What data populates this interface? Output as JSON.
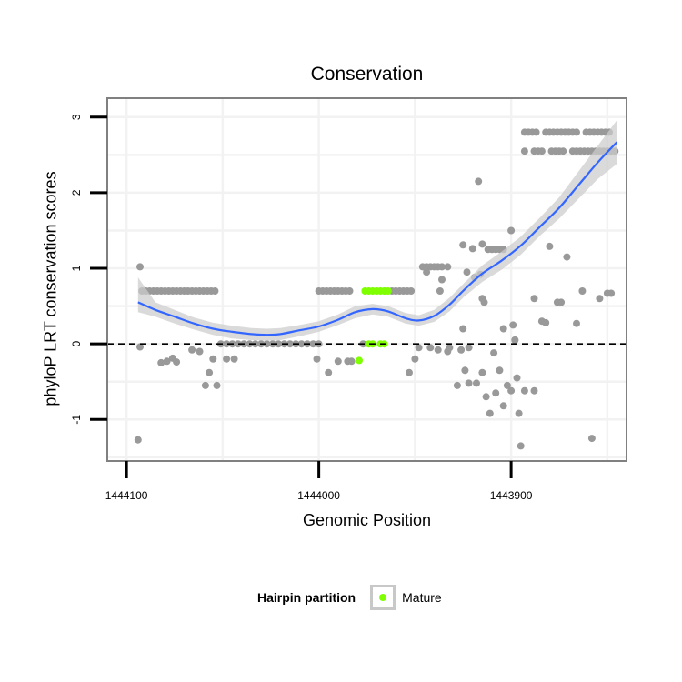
{
  "chart_data": {
    "type": "scatter",
    "title": "Conservation",
    "xlabel": "Genomic Position",
    "ylabel": "phyloP LRT conservation scores",
    "x_reversed": true,
    "xlim": [
      1444110,
      1443840
    ],
    "ylim": [
      -1.55,
      3.25
    ],
    "x_ticks": [
      1444100,
      1444000,
      1443900
    ],
    "x_tick_labels": [
      "1444100",
      "1444000",
      "1443900"
    ],
    "y_ticks": [
      3,
      2,
      1,
      0,
      -1
    ],
    "y_tick_labels": [
      "3",
      "2",
      "1",
      "0",
      "-1"
    ],
    "grid": true,
    "reference_line": {
      "y": 0,
      "style": "dashed"
    },
    "colors": {
      "background": "#ffffff",
      "panel_border": "#808080",
      "grid": "#f2f2f2",
      "points": "#999999",
      "mature": "#7fff00",
      "smooth_line": "#3366ff",
      "ribbon": "#cccccc",
      "reference": "#000000"
    },
    "legend": {
      "title": "Hairpin partition",
      "position": "bottom",
      "entries": [
        {
          "label": "Mature",
          "color": "#7fff00"
        }
      ]
    },
    "series": [
      {
        "name": "Other",
        "color": "#999999",
        "points": [
          [
            1444093,
            1.02
          ],
          [
            1444093,
            -0.04
          ],
          [
            1444094,
            -1.27
          ],
          [
            1444092,
            0.7
          ],
          [
            1444090,
            0.7
          ],
          [
            1444088,
            0.7
          ],
          [
            1444086,
            0.7
          ],
          [
            1444084,
            0.7
          ],
          [
            1444082,
            0.7
          ],
          [
            1444080,
            0.7
          ],
          [
            1444078,
            0.7
          ],
          [
            1444076,
            0.7
          ],
          [
            1444074,
            0.7
          ],
          [
            1444072,
            0.7
          ],
          [
            1444070,
            0.7
          ],
          [
            1444068,
            0.7
          ],
          [
            1444066,
            0.7
          ],
          [
            1444064,
            0.7
          ],
          [
            1444062,
            0.7
          ],
          [
            1444060,
            0.7
          ],
          [
            1444058,
            0.7
          ],
          [
            1444056,
            0.7
          ],
          [
            1444054,
            0.7
          ],
          [
            1444082,
            -0.25
          ],
          [
            1444079,
            -0.23
          ],
          [
            1444076,
            -0.19
          ],
          [
            1444074,
            -0.24
          ],
          [
            1444066,
            -0.08
          ],
          [
            1444062,
            -0.1
          ],
          [
            1444059,
            -0.55
          ],
          [
            1444057,
            -0.38
          ],
          [
            1444055,
            -0.2
          ],
          [
            1444053,
            -0.55
          ],
          [
            1444048,
            -0.2
          ],
          [
            1444044,
            -0.2
          ],
          [
            1444051,
            0.0
          ],
          [
            1444048,
            0.0
          ],
          [
            1444045,
            0.0
          ],
          [
            1444042,
            0.0
          ],
          [
            1444039,
            0.0
          ],
          [
            1444036,
            0.0
          ],
          [
            1444033,
            0.0
          ],
          [
            1444030,
            0.0
          ],
          [
            1444027,
            0.0
          ],
          [
            1444024,
            0.0
          ],
          [
            1444021,
            0.0
          ],
          [
            1444018,
            0.0
          ],
          [
            1444015,
            0.0
          ],
          [
            1444012,
            0.0
          ],
          [
            1444009,
            0.0
          ],
          [
            1444006,
            0.0
          ],
          [
            1444003,
            0.0
          ],
          [
            1444000,
            0.0
          ],
          [
            1444001,
            -0.2
          ],
          [
            1443995,
            -0.38
          ],
          [
            1443990,
            -0.23
          ],
          [
            1443985,
            -0.23
          ],
          [
            1443983,
            -0.23
          ],
          [
            1443977,
            0.0
          ],
          [
            1444000,
            0.7
          ],
          [
            1443998,
            0.7
          ],
          [
            1443996,
            0.7
          ],
          [
            1443994,
            0.7
          ],
          [
            1443992,
            0.7
          ],
          [
            1443990,
            0.7
          ],
          [
            1443988,
            0.7
          ],
          [
            1443986,
            0.7
          ],
          [
            1443984,
            0.7
          ],
          [
            1443962,
            0.7
          ],
          [
            1443960,
            0.7
          ],
          [
            1443958,
            0.7
          ],
          [
            1443956,
            0.7
          ],
          [
            1443954,
            0.7
          ],
          [
            1443952,
            0.7
          ],
          [
            1443953,
            -0.38
          ],
          [
            1443950,
            -0.2
          ],
          [
            1443948,
            -0.05
          ],
          [
            1443946,
            1.02
          ],
          [
            1443944,
            1.02
          ],
          [
            1443942,
            1.02
          ],
          [
            1443940,
            1.02
          ],
          [
            1443938,
            1.02
          ],
          [
            1443936,
            1.02
          ],
          [
            1443933,
            1.02
          ],
          [
            1443944,
            0.95
          ],
          [
            1443936,
            0.85
          ],
          [
            1443937,
            0.7
          ],
          [
            1443942,
            -0.05
          ],
          [
            1443938,
            -0.08
          ],
          [
            1443933,
            -0.1
          ],
          [
            1443932,
            -0.05
          ],
          [
            1443928,
            -0.55
          ],
          [
            1443925,
            1.31
          ],
          [
            1443923,
            0.95
          ],
          [
            1443920,
            1.26
          ],
          [
            1443919,
            0.88
          ],
          [
            1443917,
            2.15
          ],
          [
            1443915,
            1.32
          ],
          [
            1443916,
            0.92
          ],
          [
            1443915,
            0.6
          ],
          [
            1443914,
            0.55
          ],
          [
            1443912,
            1.25
          ],
          [
            1443910,
            1.25
          ],
          [
            1443908,
            1.25
          ],
          [
            1443906,
            1.25
          ],
          [
            1443904,
            1.25
          ],
          [
            1443925,
            0.2
          ],
          [
            1443926,
            -0.08
          ],
          [
            1443922,
            -0.05
          ],
          [
            1443924,
            -0.35
          ],
          [
            1443922,
            -0.52
          ],
          [
            1443918,
            -0.52
          ],
          [
            1443915,
            -0.38
          ],
          [
            1443913,
            -0.7
          ],
          [
            1443911,
            -0.92
          ],
          [
            1443909,
            -0.12
          ],
          [
            1443908,
            -0.65
          ],
          [
            1443906,
            -0.35
          ],
          [
            1443904,
            -0.82
          ],
          [
            1443902,
            -0.55
          ],
          [
            1443900,
            -0.62
          ],
          [
            1443899,
            0.25
          ],
          [
            1443898,
            0.05
          ],
          [
            1443904,
            0.2
          ],
          [
            1443900,
            1.5
          ],
          [
            1443897,
            -0.45
          ],
          [
            1443896,
            -0.92
          ],
          [
            1443895,
            -1.35
          ],
          [
            1443898,
            0.05
          ],
          [
            1443893,
            -0.62
          ],
          [
            1443888,
            0.6
          ],
          [
            1443882,
            0.28
          ],
          [
            1443880,
            1.29
          ],
          [
            1443876,
            0.55
          ],
          [
            1443874,
            0.55
          ],
          [
            1443871,
            1.15
          ],
          [
            1443866,
            0.27
          ],
          [
            1443863,
            0.7
          ],
          [
            1443858,
            -1.25
          ],
          [
            1443854,
            0.6
          ],
          [
            1443850,
            0.67
          ],
          [
            1443848,
            0.67
          ],
          [
            1443888,
            -0.62
          ],
          [
            1443884,
            0.3
          ],
          [
            1443893,
            2.8
          ],
          [
            1443891,
            2.8
          ],
          [
            1443889,
            2.8
          ],
          [
            1443887,
            2.8
          ],
          [
            1443882,
            2.8
          ],
          [
            1443880,
            2.8
          ],
          [
            1443878,
            2.8
          ],
          [
            1443876,
            2.8
          ],
          [
            1443874,
            2.8
          ],
          [
            1443872,
            2.8
          ],
          [
            1443870,
            2.8
          ],
          [
            1443868,
            2.8
          ],
          [
            1443866,
            2.8
          ],
          [
            1443861,
            2.8
          ],
          [
            1443859,
            2.8
          ],
          [
            1443857,
            2.8
          ],
          [
            1443855,
            2.8
          ],
          [
            1443853,
            2.8
          ],
          [
            1443851,
            2.8
          ],
          [
            1443849,
            2.8
          ],
          [
            1443893,
            2.55
          ],
          [
            1443888,
            2.55
          ],
          [
            1443886,
            2.55
          ],
          [
            1443884,
            2.55
          ],
          [
            1443879,
            2.55
          ],
          [
            1443877,
            2.55
          ],
          [
            1443875,
            2.55
          ],
          [
            1443873,
            2.55
          ],
          [
            1443868,
            2.55
          ],
          [
            1443866,
            2.55
          ],
          [
            1443864,
            2.55
          ],
          [
            1443862,
            2.55
          ],
          [
            1443860,
            2.55
          ],
          [
            1443858,
            2.55
          ],
          [
            1443856,
            2.55
          ],
          [
            1443854,
            2.55
          ],
          [
            1443852,
            2.55
          ],
          [
            1443850,
            2.55
          ],
          [
            1443848,
            2.55
          ],
          [
            1443846,
            2.55
          ]
        ]
      },
      {
        "name": "Mature",
        "color": "#7fff00",
        "points": [
          [
            1443976,
            0.7
          ],
          [
            1443974,
            0.7
          ],
          [
            1443972,
            0.7
          ],
          [
            1443970,
            0.7
          ],
          [
            1443968,
            0.7
          ],
          [
            1443966,
            0.7
          ],
          [
            1443964,
            0.7
          ],
          [
            1443974,
            0.0
          ],
          [
            1443972,
            0.0
          ],
          [
            1443968,
            0.0
          ],
          [
            1443966,
            0.0
          ],
          [
            1443979,
            -0.22
          ]
        ]
      }
    ],
    "smooth": {
      "method": "loess",
      "x": [
        1444094,
        1444085,
        1444075,
        1444065,
        1444055,
        1444045,
        1444035,
        1444027,
        1444020,
        1444010,
        1444000,
        1443990,
        1443981,
        1443972,
        1443964,
        1443955,
        1443948,
        1443940,
        1443932,
        1443925,
        1443915,
        1443905,
        1443895,
        1443885,
        1443875,
        1443865,
        1443855,
        1443845
      ],
      "y": [
        0.55,
        0.45,
        0.36,
        0.27,
        0.2,
        0.16,
        0.13,
        0.12,
        0.13,
        0.18,
        0.23,
        0.32,
        0.42,
        0.46,
        0.43,
        0.34,
        0.31,
        0.37,
        0.52,
        0.7,
        0.93,
        1.1,
        1.3,
        1.55,
        1.8,
        2.1,
        2.4,
        2.67
      ],
      "lower": [
        0.42,
        0.36,
        0.27,
        0.19,
        0.12,
        0.07,
        0.05,
        0.04,
        0.05,
        0.1,
        0.16,
        0.25,
        0.34,
        0.39,
        0.36,
        0.27,
        0.24,
        0.29,
        0.43,
        0.61,
        0.82,
        0.98,
        1.18,
        1.43,
        1.66,
        1.92,
        2.18,
        2.38
      ],
      "upper": [
        0.88,
        0.55,
        0.45,
        0.35,
        0.28,
        0.24,
        0.21,
        0.2,
        0.21,
        0.25,
        0.3,
        0.39,
        0.5,
        0.53,
        0.5,
        0.41,
        0.38,
        0.45,
        0.61,
        0.79,
        1.04,
        1.22,
        1.42,
        1.67,
        1.94,
        2.28,
        2.62,
        2.96
      ]
    }
  }
}
